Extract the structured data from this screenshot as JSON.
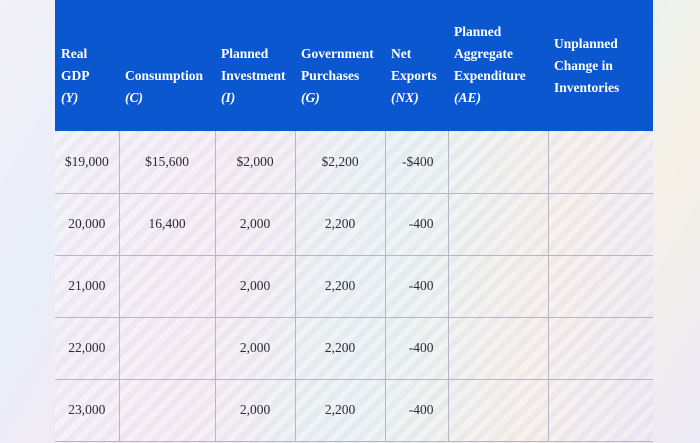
{
  "table": {
    "headers": [
      {
        "lines": [
          "Real",
          "GDP"
        ],
        "symbol": "(Y)"
      },
      {
        "lines": [
          "",
          "Consumption"
        ],
        "symbol": "(C)"
      },
      {
        "lines": [
          "Planned",
          "Investment"
        ],
        "symbol": "(I)"
      },
      {
        "lines": [
          "Government",
          "Purchases"
        ],
        "symbol": "(G)"
      },
      {
        "lines": [
          "Net",
          "Exports"
        ],
        "symbol": "(NX)"
      },
      {
        "lines": [
          "Planned",
          "Aggregate",
          "Expenditure"
        ],
        "symbol": "(AE)"
      },
      {
        "lines": [
          "Unplanned",
          "Change in",
          "Inventories"
        ],
        "symbol": ""
      }
    ],
    "rows": [
      [
        "$19,000",
        "$15,600",
        "$2,000",
        "$2,200",
        "-$400",
        "",
        ""
      ],
      [
        "20,000",
        "16,400",
        "2,000",
        "2,200",
        "-400",
        "",
        ""
      ],
      [
        "21,000",
        "",
        "2,000",
        "2,200",
        "-400",
        "",
        ""
      ],
      [
        "22,000",
        "",
        "2,000",
        "2,200",
        "-400",
        "",
        ""
      ],
      [
        "23,000",
        "",
        "2,000",
        "2,200",
        "-400",
        "",
        ""
      ]
    ]
  }
}
